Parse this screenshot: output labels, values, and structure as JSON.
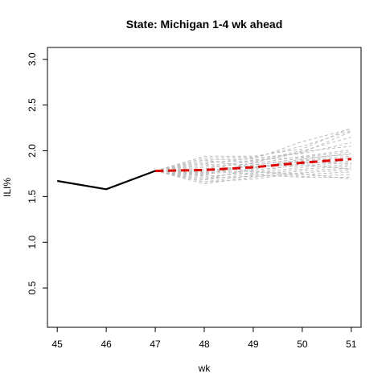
{
  "chart_data": {
    "type": "line",
    "title": "State: Michigan 1-4 wk ahead",
    "xlabel": "wk",
    "ylabel": "ILI%",
    "xlim": [
      44.8,
      51.2
    ],
    "ylim": [
      0.07,
      3.13
    ],
    "x_ticks": [
      "45",
      "46",
      "47",
      "48",
      "49",
      "50",
      "51"
    ],
    "y_ticks": [
      "0.5",
      "1.0",
      "1.5",
      "2.0",
      "2.5",
      "3.0"
    ],
    "grid": false,
    "observed": {
      "x": [
        45,
        46,
        47
      ],
      "y": [
        1.67,
        1.58,
        1.78
      ],
      "color": "#000000"
    },
    "forecast_mean": {
      "x": [
        47,
        48,
        49,
        50,
        51
      ],
      "y": [
        1.78,
        1.79,
        1.82,
        1.87,
        1.91
      ],
      "color": "#e00000"
    },
    "ensemble_color": "#bebebe",
    "ensemble_x": [
      47,
      48,
      49,
      50,
      51
    ],
    "ensemble": [
      [
        1.78,
        1.94,
        1.94,
        2.02,
        2.25
      ],
      [
        1.78,
        1.92,
        1.93,
        2.05,
        2.22
      ],
      [
        1.78,
        1.9,
        1.91,
        2.1,
        2.24
      ],
      [
        1.78,
        1.88,
        1.89,
        2.0,
        2.15
      ],
      [
        1.78,
        1.86,
        1.92,
        1.97,
        2.09
      ],
      [
        1.78,
        1.84,
        1.88,
        1.98,
        2.21
      ],
      [
        1.78,
        1.82,
        1.86,
        1.94,
        2.01
      ],
      [
        1.78,
        1.8,
        1.9,
        1.93,
        1.99
      ],
      [
        1.78,
        1.78,
        1.84,
        1.92,
        1.96
      ],
      [
        1.78,
        1.76,
        1.8,
        1.9,
        1.94
      ],
      [
        1.78,
        1.74,
        1.85,
        1.89,
        1.92
      ],
      [
        1.78,
        1.72,
        1.76,
        1.86,
        1.89
      ],
      [
        1.78,
        1.7,
        1.79,
        1.84,
        1.87
      ],
      [
        1.78,
        1.68,
        1.75,
        1.82,
        1.85
      ],
      [
        1.78,
        1.66,
        1.73,
        1.8,
        1.83
      ],
      [
        1.78,
        1.64,
        1.71,
        1.78,
        1.81
      ],
      [
        1.78,
        1.66,
        1.69,
        1.76,
        1.79
      ],
      [
        1.78,
        1.7,
        1.72,
        1.74,
        1.77
      ],
      [
        1.78,
        1.75,
        1.78,
        1.72,
        1.74
      ],
      [
        1.78,
        1.8,
        1.74,
        1.71,
        1.71
      ],
      [
        1.78,
        1.86,
        1.77,
        1.75,
        1.69
      ],
      [
        1.78,
        1.9,
        1.82,
        1.88,
        1.86
      ],
      [
        1.78,
        1.68,
        1.81,
        1.91,
        1.97
      ],
      [
        1.78,
        1.73,
        1.87,
        1.99,
        2.05
      ],
      [
        1.78,
        1.77,
        1.83,
        1.85,
        1.8
      ]
    ]
  }
}
